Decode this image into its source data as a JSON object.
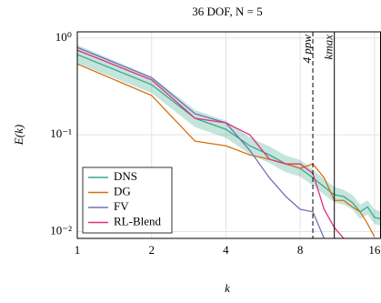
{
  "chart_data": {
    "type": "line",
    "title": "36 DOF, N = 5",
    "x_label": "k",
    "y_label": "E(k)",
    "xscale": "log",
    "yscale": "log",
    "grid": true,
    "legend": "lower left",
    "x": [
      1,
      2,
      3,
      4,
      5,
      6,
      7,
      8,
      9,
      10,
      11,
      12,
      13,
      14,
      15,
      16,
      17
    ],
    "xlim": [
      1,
      17
    ],
    "ylim": [
      0.0085,
      1.16
    ],
    "xticks": [
      1,
      2,
      4,
      8,
      16
    ],
    "yticks": [
      {
        "value": 1,
        "label": "10⁰"
      },
      {
        "value": 0.1,
        "label": "10⁻¹"
      },
      {
        "value": 0.01,
        "label": "10⁻²"
      }
    ],
    "series": [
      {
        "name": "DNS",
        "color": "#3aa88a",
        "values": [
          0.676,
          0.33,
          0.148,
          0.114,
          0.077,
          0.062,
          0.05,
          0.045,
          0.036,
          0.029,
          0.024,
          0.023,
          0.02,
          0.016,
          0.018,
          0.014,
          0.0135
        ],
        "band_lower": [
          0.55,
          0.27,
          0.12,
          0.093,
          0.063,
          0.051,
          0.041,
          0.037,
          0.03,
          0.024,
          0.02,
          0.019,
          0.017,
          0.0135,
          0.015,
          0.012,
          0.0115
        ],
        "band_upper": [
          0.85,
          0.4,
          0.18,
          0.14,
          0.094,
          0.076,
          0.061,
          0.055,
          0.044,
          0.035,
          0.029,
          0.027,
          0.024,
          0.019,
          0.021,
          0.017,
          0.016
        ]
      },
      {
        "name": "DG",
        "color": "#d6700f",
        "values": [
          0.54,
          0.255,
          0.086,
          0.077,
          0.062,
          0.056,
          0.05,
          0.045,
          0.05,
          0.036,
          0.021,
          0.021,
          0.018,
          0.016,
          0.012,
          0.0088,
          null
        ]
      },
      {
        "name": "FV",
        "color": "#7570b3",
        "values": [
          0.8,
          0.39,
          0.165,
          0.133,
          0.069,
          0.036,
          0.023,
          0.017,
          0.016,
          0.0085,
          null,
          null,
          null,
          null,
          null,
          null,
          null
        ]
      },
      {
        "name": "RL-Blend",
        "color": "#e0307e",
        "values": [
          0.75,
          0.37,
          0.148,
          0.133,
          0.1,
          0.056,
          0.05,
          0.05,
          0.04,
          0.017,
          0.011,
          0.0085,
          null,
          null,
          null,
          null,
          null
        ]
      }
    ],
    "annotations": [
      {
        "x": 9,
        "label": "4 ppw",
        "style": "dashed"
      },
      {
        "x": 11,
        "label": "kmax",
        "style": "solid"
      }
    ]
  }
}
